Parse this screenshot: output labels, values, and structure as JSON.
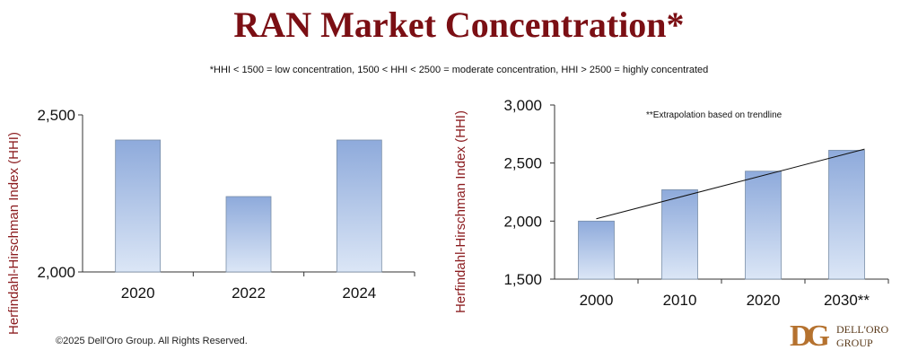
{
  "header": {
    "title": "RAN Market Concentration*",
    "subtitle": "*HHI < 1500 = low concentration, 1500 < HHI < 2500 = moderate concentration, HHI > 2500 = highly concentrated"
  },
  "chart_data": [
    {
      "type": "bar",
      "categories": [
        "2020",
        "2022",
        "2024"
      ],
      "values": [
        2420,
        2240,
        2420
      ],
      "ylim": [
        2000,
        2500
      ],
      "yticks": [
        2000,
        2500
      ],
      "ytick_labels": [
        "2,000",
        "2,500"
      ],
      "ylabel": "Herfindahl-Hirschman Index (HHI)",
      "xlabel": "",
      "colors": {
        "bar_top": "#8eaadb",
        "bar_bottom": "#dbe6f6",
        "bar_stroke": "#7a8fa8"
      }
    },
    {
      "type": "bar",
      "categories": [
        "2000",
        "2010",
        "2020",
        "2030**"
      ],
      "values": [
        2000,
        2270,
        2430,
        2610
      ],
      "ylim": [
        1500,
        3000
      ],
      "yticks": [
        1500,
        2000,
        2500,
        3000
      ],
      "ytick_labels": [
        "1,500",
        "2,000",
        "2,500",
        "3,000"
      ],
      "ylabel": "Herfindahl-Hirschman Index (HHI)",
      "xlabel": "",
      "trendline": {
        "start_value": 2020,
        "end_value": 2620
      },
      "annotation": "**Extrapolation based on trendline",
      "colors": {
        "bar_top": "#8eaadb",
        "bar_bottom": "#dbe6f6",
        "bar_stroke": "#7a8fa8"
      }
    }
  ],
  "footer": {
    "copyright": "©2025 Dell'Oro Group. All Rights Reserved.",
    "logo_mark": "DG",
    "logo_line1": "DELL'ORO",
    "logo_line2": "GROUP"
  }
}
